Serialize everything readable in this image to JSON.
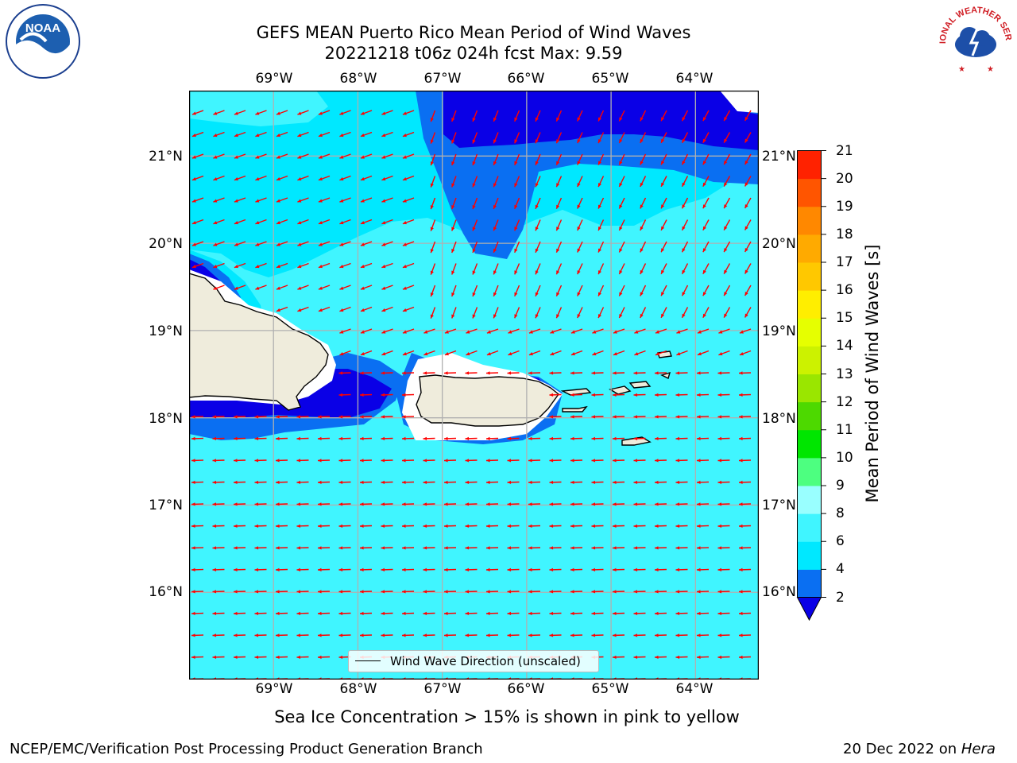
{
  "title": {
    "line1": "GEFS MEAN Puerto Rico Mean Period of Wind Waves",
    "line2": "20221218 t06z 024h fcst   Max: 9.59"
  },
  "map": {
    "lon_ticks": [
      "69°W",
      "68°W",
      "67°W",
      "66°W",
      "65°W",
      "64°W"
    ],
    "lat_ticks": [
      "21°N",
      "20°N",
      "19°N",
      "18°N",
      "17°N",
      "16°N"
    ],
    "lon_range": [
      -70.0,
      -63.25
    ],
    "lat_range": [
      15.0,
      21.75
    ],
    "grid": true,
    "arrow_color": "#ff0000",
    "arrow_direction": "toward west"
  },
  "legend": {
    "label": "Wind Wave Direction (unscaled)"
  },
  "colorbar": {
    "label": "Mean Period of Wind Waves [s]",
    "levels": [
      2,
      4,
      6,
      8,
      9,
      10,
      11,
      12,
      13,
      14,
      15,
      16,
      17,
      18,
      19,
      20,
      21
    ],
    "colors": [
      "#0a6ff2",
      "#00e8ff",
      "#40f5ff",
      "#99ffff",
      "#4dff80",
      "#00e600",
      "#4dd900",
      "#9ae600",
      "#ccf200",
      "#e6ff00",
      "#ffee00",
      "#ffc800",
      "#ffaa00",
      "#ff8800",
      "#ff5500",
      "#ff2200"
    ],
    "under_color": "#0a00e6"
  },
  "chart_data": {
    "type": "heatmap",
    "title": "GEFS MEAN Puerto Rico Mean Period of Wind Waves",
    "subtitle": "20221218 t06z 024h fcst   Max: 9.59",
    "x": [
      "69°W",
      "68°W",
      "67°W",
      "66°W",
      "65°W",
      "64°W"
    ],
    "y": [
      "21°N",
      "20°N",
      "19°N",
      "18°N",
      "17°N",
      "16°N"
    ],
    "colorbar_label": "Mean Period of Wind Waves [s]",
    "colorbar_range": [
      2,
      21
    ],
    "max": 9.59,
    "legend": [
      "Wind Wave Direction (unscaled)"
    ]
  },
  "subtitle": "Sea Ice Concentration > 15% is shown in pink to yellow",
  "footer": {
    "left": "NCEP/EMC/Verification Post Processing Product Generation Branch",
    "date": "20 Dec 2022 on ",
    "machine": "Hera"
  },
  "logos": {
    "left": "NOAA",
    "right": "NATIONAL WEATHER SERVICE"
  }
}
